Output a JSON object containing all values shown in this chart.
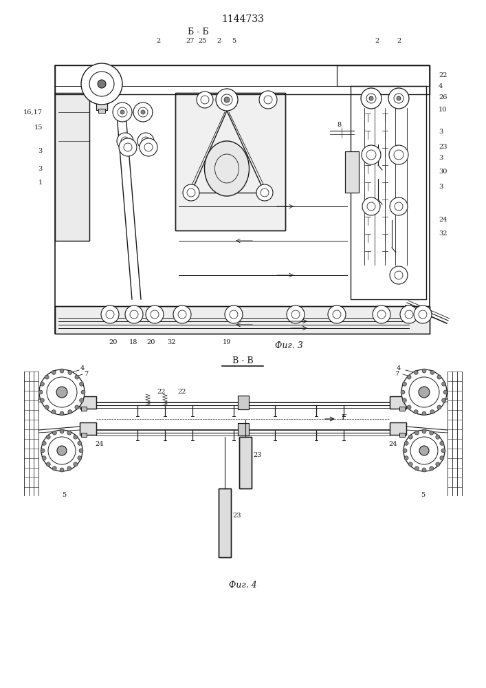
{
  "title": "1144733",
  "fig3_label": "Б - Б",
  "fig4_label": "В - В",
  "fig3_caption": "Фиг. 3",
  "fig4_caption": "Фиг. 4",
  "bg_color": "#ffffff",
  "lc": "#1a1a1a"
}
